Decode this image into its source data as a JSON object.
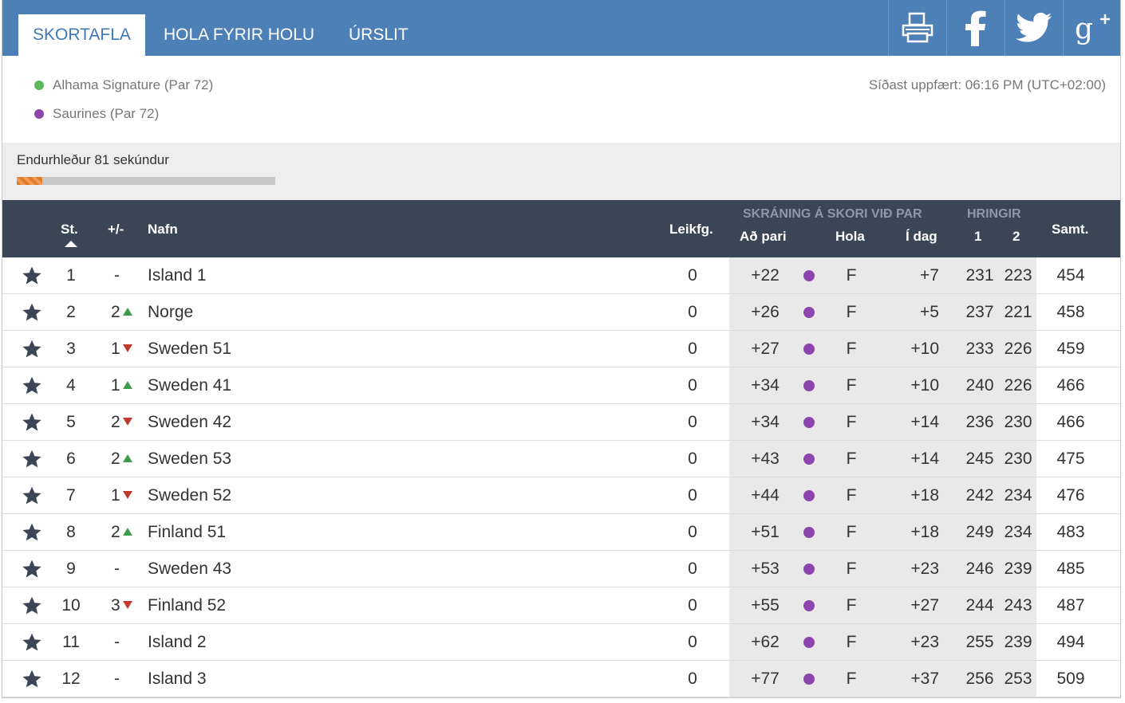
{
  "tabs": [
    {
      "label": "SKORTAFLA",
      "active": true
    },
    {
      "label": "HOLA FYRIR HOLU",
      "active": false
    },
    {
      "label": "ÚRSLIT",
      "active": false
    }
  ],
  "social": [
    "printer-icon",
    "facebook-icon",
    "twitter-icon",
    "google-plus-icon"
  ],
  "courses": [
    {
      "label": "Alhama Signature (Par 72)",
      "color": "#5cb85c"
    },
    {
      "label": "Saurines (Par 72)",
      "color": "#8e44ad"
    }
  ],
  "updated": "Síðast uppfært: 06:16 PM (UTC+02:00)",
  "refresh": {
    "label": "Endurhleður 81 sekúndur",
    "progress_fraction": 0.1
  },
  "header": {
    "pos": "St.",
    "move": "+/-",
    "name": "Nafn",
    "played": "Leikfg.",
    "group_score": "SKRÁNING Á SKORI VIÐ PAR",
    "to_par": "Að pari",
    "hole": "Hola",
    "today": "Í dag",
    "group_rounds": "HRINGIR",
    "r1": "1",
    "r2": "2",
    "total": "Samt."
  },
  "rows": [
    {
      "pos": "1",
      "move": "-",
      "dir": "none",
      "name": "Island 1",
      "played": "0",
      "to_par": "+22",
      "hole": "F",
      "today": "+7",
      "r1": "231",
      "r2": "223",
      "total": "454"
    },
    {
      "pos": "2",
      "move": "2",
      "dir": "up",
      "name": "Norge",
      "played": "0",
      "to_par": "+26",
      "hole": "F",
      "today": "+5",
      "r1": "237",
      "r2": "221",
      "total": "458"
    },
    {
      "pos": "3",
      "move": "1",
      "dir": "down",
      "name": "Sweden 51",
      "played": "0",
      "to_par": "+27",
      "hole": "F",
      "today": "+10",
      "r1": "233",
      "r2": "226",
      "total": "459"
    },
    {
      "pos": "4",
      "move": "1",
      "dir": "up",
      "name": "Sweden 41",
      "played": "0",
      "to_par": "+34",
      "hole": "F",
      "today": "+10",
      "r1": "240",
      "r2": "226",
      "total": "466"
    },
    {
      "pos": "5",
      "move": "2",
      "dir": "down",
      "name": "Sweden 42",
      "played": "0",
      "to_par": "+34",
      "hole": "F",
      "today": "+14",
      "r1": "236",
      "r2": "230",
      "total": "466"
    },
    {
      "pos": "6",
      "move": "2",
      "dir": "up",
      "name": "Sweden 53",
      "played": "0",
      "to_par": "+43",
      "hole": "F",
      "today": "+14",
      "r1": "245",
      "r2": "230",
      "total": "475"
    },
    {
      "pos": "7",
      "move": "1",
      "dir": "down",
      "name": "Sweden 52",
      "played": "0",
      "to_par": "+44",
      "hole": "F",
      "today": "+18",
      "r1": "242",
      "r2": "234",
      "total": "476"
    },
    {
      "pos": "8",
      "move": "2",
      "dir": "up",
      "name": "Finland 51",
      "played": "0",
      "to_par": "+51",
      "hole": "F",
      "today": "+18",
      "r1": "249",
      "r2": "234",
      "total": "483"
    },
    {
      "pos": "9",
      "move": "-",
      "dir": "none",
      "name": "Sweden 43",
      "played": "0",
      "to_par": "+53",
      "hole": "F",
      "today": "+23",
      "r1": "246",
      "r2": "239",
      "total": "485"
    },
    {
      "pos": "10",
      "move": "3",
      "dir": "down",
      "name": "Finland 52",
      "played": "0",
      "to_par": "+55",
      "hole": "F",
      "today": "+27",
      "r1": "244",
      "r2": "243",
      "total": "487"
    },
    {
      "pos": "11",
      "move": "-",
      "dir": "none",
      "name": "Island 2",
      "played": "0",
      "to_par": "+62",
      "hole": "F",
      "today": "+23",
      "r1": "255",
      "r2": "239",
      "total": "494"
    },
    {
      "pos": "12",
      "move": "-",
      "dir": "none",
      "name": "Island 3",
      "played": "0",
      "to_par": "+77",
      "hole": "F",
      "today": "+37",
      "r1": "256",
      "r2": "253",
      "total": "509"
    }
  ],
  "colors": {
    "bar": "#4e80b8",
    "header": "#3a4556",
    "course_dot": "#8e44ad",
    "up": "#3f9d4f",
    "down": "#c0392b"
  }
}
